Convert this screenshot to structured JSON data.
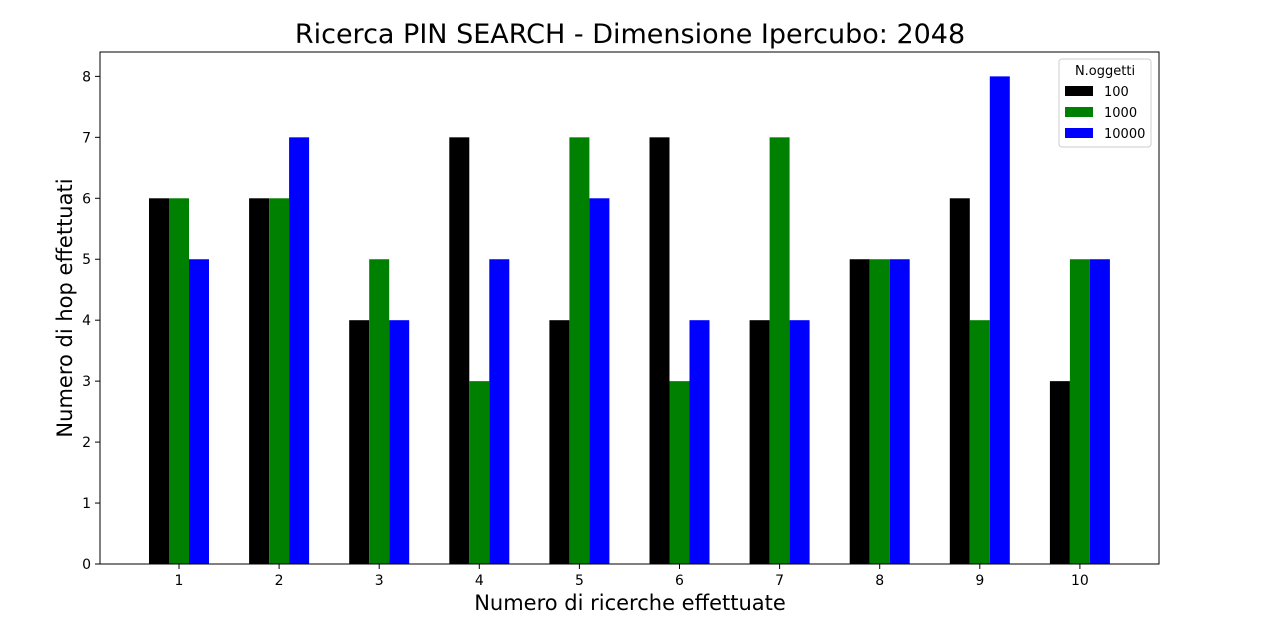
{
  "chart_data": {
    "type": "bar",
    "title": "Ricerca PIN SEARCH - Dimensione Ipercubo: 2048",
    "xlabel": "Numero di ricerche effettuate",
    "ylabel": "Numero di hop effettuati",
    "categories": [
      "1",
      "2",
      "3",
      "4",
      "5",
      "6",
      "7",
      "8",
      "9",
      "10"
    ],
    "yticks": [
      "0",
      "1",
      "2",
      "3",
      "4",
      "5",
      "6",
      "7",
      "8"
    ],
    "ylim": [
      0,
      8.4
    ],
    "grid": false,
    "legend": {
      "title": "N.oggetti",
      "placement": "top-right"
    },
    "series": [
      {
        "name": "100",
        "color": "#000000",
        "values": [
          6,
          6,
          4,
          7,
          4,
          7,
          4,
          5,
          6,
          3
        ]
      },
      {
        "name": "1000",
        "color": "#008000",
        "values": [
          6,
          6,
          5,
          3,
          7,
          3,
          7,
          5,
          4,
          5
        ]
      },
      {
        "name": "10000",
        "color": "#0000ff",
        "values": [
          5,
          7,
          4,
          5,
          6,
          4,
          4,
          5,
          8,
          5
        ]
      }
    ]
  }
}
